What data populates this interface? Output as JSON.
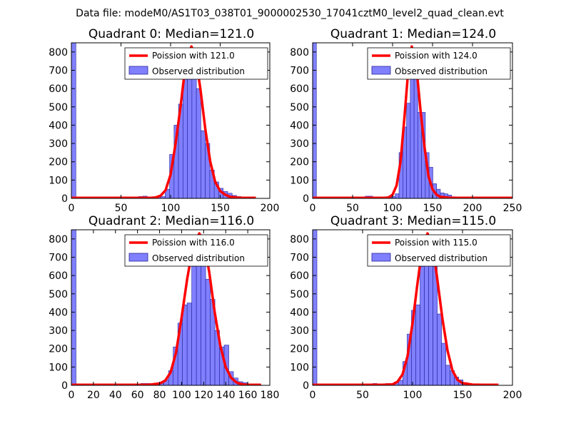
{
  "suptitle": "Data file: modeM0/AS1T03_038T01_9000002530_17041cztM0_level2_quad_clean.evt",
  "colors": {
    "bar_fill": "#8080ff",
    "bar_edge": "#24249a",
    "curve": "#ff0000",
    "frame": "#000000"
  },
  "chart_data": [
    {
      "type": "bar",
      "title": "Quadrant 0: Median=121.0",
      "xlim": [
        0,
        200
      ],
      "ylim": [
        0,
        850
      ],
      "xticks": [
        0,
        50,
        100,
        150,
        200
      ],
      "yticks": [
        0,
        100,
        200,
        300,
        400,
        500,
        600,
        700,
        800
      ],
      "bin_width": 4.5,
      "bins": [
        [
          0,
          850
        ],
        [
          4.5,
          3
        ],
        [
          9,
          3
        ],
        [
          13.5,
          3
        ],
        [
          18,
          3
        ],
        [
          22.5,
          3
        ],
        [
          27,
          3
        ],
        [
          31.5,
          3
        ],
        [
          36,
          3
        ],
        [
          40.5,
          3
        ],
        [
          45,
          3
        ],
        [
          49.5,
          3
        ],
        [
          54,
          3
        ],
        [
          58.5,
          3
        ],
        [
          63,
          3
        ],
        [
          67.5,
          10
        ],
        [
          72,
          12
        ],
        [
          76.5,
          3
        ],
        [
          81,
          5
        ],
        [
          85.5,
          8
        ],
        [
          90,
          10
        ],
        [
          94.5,
          50
        ],
        [
          99,
          240
        ],
        [
          103.5,
          400
        ],
        [
          108,
          515
        ],
        [
          112.5,
          660
        ],
        [
          117,
          790
        ],
        [
          121.5,
          705
        ],
        [
          126,
          600
        ],
        [
          130.5,
          370
        ],
        [
          135,
          300
        ],
        [
          139.5,
          155
        ],
        [
          144,
          90
        ],
        [
          148.5,
          55
        ],
        [
          153,
          38
        ],
        [
          157.5,
          28
        ],
        [
          162,
          16
        ],
        [
          166.5,
          10
        ],
        [
          171,
          6
        ],
        [
          175.5,
          4
        ],
        [
          180,
          3
        ]
      ],
      "curve_x": [
        0,
        60,
        70,
        80,
        85,
        90,
        95,
        100,
        105,
        110,
        115,
        121,
        125,
        130,
        135,
        140,
        145,
        150,
        155,
        160,
        170,
        186
      ],
      "curve_y": [
        3,
        3,
        3,
        3,
        5,
        15,
        45,
        130,
        300,
        500,
        730,
        830,
        780,
        600,
        380,
        200,
        90,
        40,
        20,
        8,
        3,
        3
      ],
      "legend": [
        "Poission with 121.0",
        "Observed distribution"
      ]
    },
    {
      "type": "bar",
      "title": "Quadrant 1: Median=124.0",
      "xlim": [
        0,
        250
      ],
      "ylim": [
        0,
        850
      ],
      "xticks": [
        0,
        50,
        100,
        150,
        200,
        250
      ],
      "yticks": [
        0,
        100,
        200,
        300,
        400,
        500,
        600,
        700,
        800
      ],
      "bin_width": 4.7,
      "bins": [
        [
          0,
          850
        ],
        [
          4.7,
          3
        ],
        [
          9.4,
          3
        ],
        [
          14.1,
          3
        ],
        [
          18.8,
          3
        ],
        [
          23.5,
          3
        ],
        [
          28.2,
          3
        ],
        [
          32.9,
          3
        ],
        [
          37.6,
          3
        ],
        [
          42.3,
          3
        ],
        [
          47,
          3
        ],
        [
          51.7,
          3
        ],
        [
          56.4,
          3
        ],
        [
          61.1,
          3
        ],
        [
          65.8,
          12
        ],
        [
          70.5,
          12
        ],
        [
          75.2,
          3
        ],
        [
          79.9,
          3
        ],
        [
          84.6,
          3
        ],
        [
          89.3,
          3
        ],
        [
          94,
          3
        ],
        [
          98.7,
          10
        ],
        [
          103.4,
          25
        ],
        [
          108.1,
          250
        ],
        [
          112.8,
          390
        ],
        [
          117.5,
          520
        ],
        [
          122.2,
          760
        ],
        [
          126.9,
          695
        ],
        [
          131.6,
          470
        ],
        [
          136.3,
          470
        ],
        [
          141,
          250
        ],
        [
          145.7,
          170
        ],
        [
          150.4,
          80
        ],
        [
          155.1,
          50
        ],
        [
          159.8,
          30
        ],
        [
          164.5,
          25
        ],
        [
          169.2,
          18
        ],
        [
          173.9,
          8
        ],
        [
          178.6,
          5
        ],
        [
          183.3,
          4
        ],
        [
          188,
          3
        ],
        [
          192.7,
          3
        ],
        [
          197.4,
          3
        ]
      ],
      "curve_x": [
        0,
        80,
        90,
        95,
        100,
        105,
        110,
        115,
        120,
        124,
        130,
        135,
        140,
        145,
        150,
        155,
        160,
        170,
        180,
        200,
        250
      ],
      "curve_y": [
        3,
        3,
        3,
        5,
        20,
        70,
        200,
        450,
        720,
        830,
        710,
        480,
        280,
        120,
        50,
        20,
        8,
        4,
        3,
        3,
        3
      ],
      "legend": [
        "Poission with 124.0",
        "Observed distribution"
      ]
    },
    {
      "type": "bar",
      "title": "Quadrant 2: Median=116.0",
      "xlim": [
        0,
        180
      ],
      "ylim": [
        0,
        850
      ],
      "xticks": [
        0,
        20,
        40,
        60,
        80,
        100,
        120,
        140,
        160,
        180
      ],
      "yticks": [
        0,
        100,
        200,
        300,
        400,
        500,
        600,
        700,
        800
      ],
      "bin_width": 4.2,
      "bins": [
        [
          0,
          850
        ],
        [
          4.2,
          3
        ],
        [
          8.4,
          3
        ],
        [
          12.6,
          3
        ],
        [
          16.8,
          3
        ],
        [
          21,
          3
        ],
        [
          25.2,
          3
        ],
        [
          29.4,
          3
        ],
        [
          33.6,
          3
        ],
        [
          37.8,
          3
        ],
        [
          42,
          3
        ],
        [
          46.2,
          3
        ],
        [
          50.4,
          3
        ],
        [
          54.6,
          3
        ],
        [
          58.8,
          3
        ],
        [
          63,
          10
        ],
        [
          67.2,
          10
        ],
        [
          71.4,
          5
        ],
        [
          75.6,
          5
        ],
        [
          79.8,
          10
        ],
        [
          84,
          30
        ],
        [
          88.2,
          80
        ],
        [
          92.4,
          210
        ],
        [
          96.6,
          340
        ],
        [
          100.8,
          440
        ],
        [
          105,
          450
        ],
        [
          109.2,
          650
        ],
        [
          113.4,
          790
        ],
        [
          117.6,
          710
        ],
        [
          121.8,
          580
        ],
        [
          126,
          470
        ],
        [
          130.2,
          300
        ],
        [
          134.4,
          210
        ],
        [
          138.6,
          220
        ],
        [
          142.8,
          75
        ],
        [
          147,
          40
        ],
        [
          151.2,
          20
        ],
        [
          155.4,
          15
        ],
        [
          159.6,
          5
        ],
        [
          163.8,
          3
        ],
        [
          168,
          3
        ]
      ],
      "curve_x": [
        0,
        60,
        70,
        80,
        85,
        90,
        95,
        100,
        105,
        110,
        116,
        120,
        125,
        130,
        135,
        140,
        145,
        150,
        155,
        160,
        172
      ],
      "curve_y": [
        3,
        3,
        3,
        10,
        25,
        70,
        180,
        370,
        580,
        750,
        830,
        790,
        620,
        400,
        220,
        100,
        40,
        15,
        5,
        3,
        3
      ],
      "legend": [
        "Poission with 116.0",
        "Observed distribution"
      ]
    },
    {
      "type": "bar",
      "title": "Quadrant 3: Median=115.0",
      "xlim": [
        0,
        200
      ],
      "ylim": [
        0,
        850
      ],
      "xticks": [
        0,
        50,
        100,
        150,
        200
      ],
      "yticks": [
        0,
        100,
        200,
        300,
        400,
        500,
        600,
        700,
        800
      ],
      "bin_width": 4.3,
      "bins": [
        [
          0,
          850
        ],
        [
          4.3,
          3
        ],
        [
          8.6,
          3
        ],
        [
          12.9,
          3
        ],
        [
          17.2,
          3
        ],
        [
          21.5,
          3
        ],
        [
          25.8,
          3
        ],
        [
          30.1,
          3
        ],
        [
          34.4,
          3
        ],
        [
          38.7,
          3
        ],
        [
          43,
          3
        ],
        [
          47.3,
          3
        ],
        [
          51.6,
          3
        ],
        [
          55.9,
          3
        ],
        [
          60.2,
          10
        ],
        [
          64.5,
          5
        ],
        [
          68.8,
          8
        ],
        [
          73.1,
          10
        ],
        [
          77.4,
          10
        ],
        [
          81.7,
          18
        ],
        [
          86,
          28
        ],
        [
          90.3,
          130
        ],
        [
          94.6,
          280
        ],
        [
          98.9,
          410
        ],
        [
          103.2,
          440
        ],
        [
          107.5,
          650
        ],
        [
          111.8,
          810
        ],
        [
          116.1,
          700
        ],
        [
          120.4,
          650
        ],
        [
          124.7,
          390
        ],
        [
          129,
          230
        ],
        [
          133.3,
          110
        ],
        [
          137.6,
          80
        ],
        [
          141.9,
          45
        ],
        [
          146.2,
          30
        ],
        [
          150.5,
          15
        ],
        [
          154.8,
          8
        ],
        [
          159.1,
          4
        ],
        [
          163.4,
          3
        ]
      ],
      "curve_x": [
        0,
        70,
        80,
        85,
        90,
        95,
        100,
        105,
        110,
        115,
        120,
        125,
        130,
        135,
        140,
        145,
        150,
        160,
        170,
        186
      ],
      "curve_y": [
        3,
        3,
        5,
        20,
        60,
        160,
        340,
        560,
        760,
        830,
        770,
        570,
        360,
        190,
        80,
        30,
        12,
        4,
        3,
        3
      ],
      "legend": [
        "Poission with 115.0",
        "Observed distribution"
      ]
    }
  ]
}
